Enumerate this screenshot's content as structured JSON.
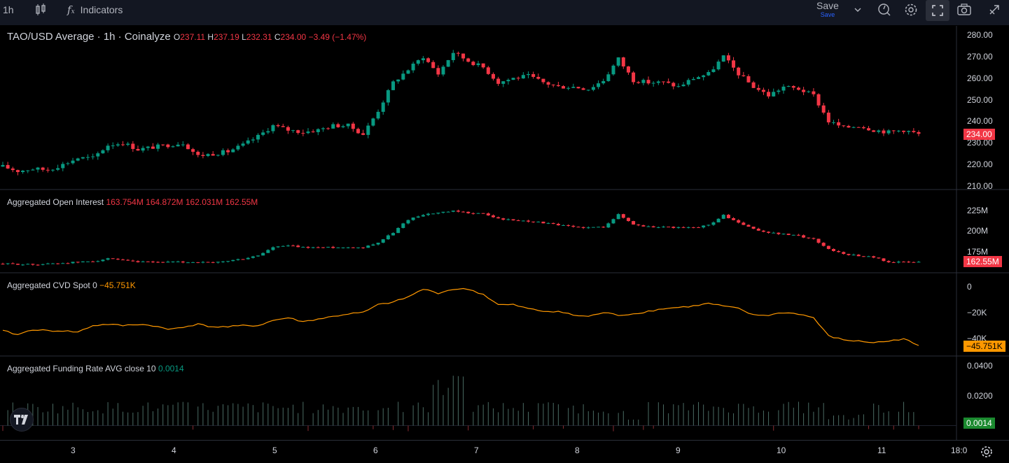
{
  "toolbar": {
    "interval": "1h",
    "indicators_label": "Indicators",
    "save_label": "Save",
    "save_sub": "Save",
    "icons": [
      "candles-icon",
      "fx-icon",
      "chevron-down-icon",
      "replay-icon",
      "gear-icon",
      "fullscreen-icon",
      "camera-icon",
      "publish-icon"
    ]
  },
  "colors": {
    "up": "#089981",
    "down": "#f23645",
    "cvd": "#ff9800",
    "grid": "#1e222d",
    "bg": "#000000",
    "funding_up": "#4a6b63",
    "funding_down": "#8a2d33"
  },
  "chart_data": [
    {
      "type": "candlestick",
      "title_parts": {
        "symbol": "TAO/USD Average · 1h · Coinalyze",
        "o_label": "O",
        "o": "237.11",
        "h_label": "H",
        "h": "237.19",
        "l_label": "L",
        "l": "232.31",
        "c_label": "C",
        "c": "234.00",
        "change": "−3.49 (−1.47%)"
      },
      "ylim": [
        210,
        280
      ],
      "y_ticks": [
        "280.00",
        "270.00",
        "260.00",
        "250.00",
        "240.00",
        "230.00",
        "220.00",
        "210.00"
      ],
      "last_value": "234.00",
      "close_path": [
        [
          0,
          219
        ],
        [
          3,
          217
        ],
        [
          6,
          218
        ],
        [
          9,
          217.5
        ],
        [
          12,
          220
        ],
        [
          15,
          223
        ],
        [
          18,
          223
        ],
        [
          21,
          229
        ],
        [
          24,
          230
        ],
        [
          27,
          227
        ],
        [
          30,
          228
        ],
        [
          33,
          229
        ],
        [
          36,
          230
        ],
        [
          39,
          224
        ],
        [
          42,
          225
        ],
        [
          45,
          226
        ],
        [
          48,
          229
        ],
        [
          51,
          233
        ],
        [
          54,
          238
        ],
        [
          57,
          236
        ],
        [
          60,
          235
        ],
        [
          63,
          236
        ],
        [
          66,
          238
        ],
        [
          69,
          238
        ],
        [
          72,
          234
        ],
        [
          75,
          245
        ],
        [
          78,
          258
        ],
        [
          81,
          264
        ],
        [
          84,
          270
        ],
        [
          87,
          262
        ],
        [
          90,
          272
        ],
        [
          93,
          268
        ],
        [
          96,
          265
        ],
        [
          99,
          258
        ],
        [
          102,
          260
        ],
        [
          105,
          261
        ],
        [
          108,
          258
        ],
        [
          111,
          256
        ],
        [
          114,
          256
        ],
        [
          117,
          255
        ],
        [
          120,
          259
        ],
        [
          123,
          269
        ],
        [
          126,
          259
        ],
        [
          129,
          258
        ],
        [
          132,
          258
        ],
        [
          135,
          256
        ],
        [
          138,
          260
        ],
        [
          141,
          262
        ],
        [
          144,
          270
        ],
        [
          147,
          262
        ],
        [
          150,
          256
        ],
        [
          153,
          252
        ],
        [
          156,
          256
        ],
        [
          159,
          255
        ],
        [
          162,
          252
        ],
        [
          165,
          240
        ],
        [
          168,
          237
        ],
        [
          171,
          238
        ],
        [
          174,
          236
        ],
        [
          177,
          235
        ],
        [
          180,
          236
        ],
        [
          183,
          234
        ]
      ]
    },
    {
      "type": "candlestick",
      "title_parts": {
        "name": "Aggregated Open Interest",
        "o": "163.754M",
        "h": "164.872M",
        "l": "162.031M",
        "c": "162.55M"
      },
      "ylim": [
        155,
        230
      ],
      "y_ticks": [
        "225M",
        "200M",
        "175M"
      ],
      "last_value": "162.55M",
      "close_path": [
        [
          0,
          160
        ],
        [
          6,
          159
        ],
        [
          12,
          161
        ],
        [
          18,
          163
        ],
        [
          21,
          166
        ],
        [
          24,
          164
        ],
        [
          27,
          162
        ],
        [
          33,
          162
        ],
        [
          39,
          162
        ],
        [
          42,
          161
        ],
        [
          48,
          166
        ],
        [
          51,
          170
        ],
        [
          54,
          180
        ],
        [
          57,
          182
        ],
        [
          60,
          180
        ],
        [
          66,
          180
        ],
        [
          72,
          180
        ],
        [
          75,
          186
        ],
        [
          78,
          198
        ],
        [
          81,
          214
        ],
        [
          84,
          220
        ],
        [
          87,
          222
        ],
        [
          90,
          224
        ],
        [
          93,
          222
        ],
        [
          96,
          221
        ],
        [
          99,
          215
        ],
        [
          102,
          213
        ],
        [
          105,
          212
        ],
        [
          108,
          210
        ],
        [
          111,
          207
        ],
        [
          114,
          205
        ],
        [
          117,
          204
        ],
        [
          120,
          205
        ],
        [
          123,
          220
        ],
        [
          126,
          208
        ],
        [
          129,
          205
        ],
        [
          132,
          205
        ],
        [
          135,
          204
        ],
        [
          138,
          204
        ],
        [
          141,
          207
        ],
        [
          144,
          219
        ],
        [
          147,
          210
        ],
        [
          150,
          202
        ],
        [
          153,
          198
        ],
        [
          156,
          196
        ],
        [
          159,
          194
        ],
        [
          162,
          190
        ],
        [
          165,
          178
        ],
        [
          168,
          172
        ],
        [
          171,
          170
        ],
        [
          174,
          168
        ],
        [
          177,
          162
        ],
        [
          180,
          162
        ],
        [
          183,
          162
        ]
      ]
    },
    {
      "type": "line",
      "title_parts": {
        "name": "Aggregated CVD Spot 0",
        "value": "−45.751K"
      },
      "ylim": [
        -48,
        2
      ],
      "y_ticks": [
        "0",
        "−20K",
        "−40K"
      ],
      "last_value": "−45.751K",
      "values": [
        [
          0,
          -34
        ],
        [
          3,
          -37
        ],
        [
          6,
          -33
        ],
        [
          9,
          -34
        ],
        [
          12,
          -34
        ],
        [
          15,
          -35
        ],
        [
          18,
          -30
        ],
        [
          21,
          -29
        ],
        [
          24,
          -30
        ],
        [
          27,
          -29
        ],
        [
          30,
          -30
        ],
        [
          33,
          -33
        ],
        [
          36,
          -31
        ],
        [
          39,
          -29
        ],
        [
          42,
          -31
        ],
        [
          45,
          -31
        ],
        [
          48,
          -30
        ],
        [
          51,
          -30
        ],
        [
          54,
          -26
        ],
        [
          57,
          -24
        ],
        [
          60,
          -27
        ],
        [
          63,
          -25
        ],
        [
          66,
          -23
        ],
        [
          69,
          -21
        ],
        [
          72,
          -20
        ],
        [
          75,
          -14
        ],
        [
          78,
          -12
        ],
        [
          81,
          -8
        ],
        [
          84,
          -2
        ],
        [
          87,
          -5
        ],
        [
          90,
          -2
        ],
        [
          93,
          -2
        ],
        [
          96,
          -6
        ],
        [
          99,
          -14
        ],
        [
          102,
          -14
        ],
        [
          105,
          -17
        ],
        [
          108,
          -19
        ],
        [
          111,
          -19
        ],
        [
          114,
          -22
        ],
        [
          117,
          -23
        ],
        [
          120,
          -20
        ],
        [
          123,
          -22
        ],
        [
          126,
          -21
        ],
        [
          129,
          -19
        ],
        [
          132,
          -17
        ],
        [
          135,
          -16
        ],
        [
          138,
          -15
        ],
        [
          141,
          -13
        ],
        [
          144,
          -15
        ],
        [
          147,
          -17
        ],
        [
          150,
          -22
        ],
        [
          153,
          -22
        ],
        [
          156,
          -20
        ],
        [
          159,
          -21
        ],
        [
          162,
          -24
        ],
        [
          165,
          -38
        ],
        [
          168,
          -41
        ],
        [
          171,
          -42
        ],
        [
          174,
          -43
        ],
        [
          177,
          -42
        ],
        [
          180,
          -40
        ],
        [
          183,
          -45.751
        ]
      ]
    },
    {
      "type": "bar",
      "title_parts": {
        "name": "Aggregated Funding Rate AVG close 10",
        "value": "0.0014"
      },
      "ylim": [
        -0.004,
        0.042
      ],
      "y_ticks": [
        "0.0400",
        "0.0200"
      ],
      "last_value": "0.0014"
    }
  ],
  "x_axis": {
    "labels": [
      "3",
      "4",
      "5",
      "6",
      "7",
      "8",
      "9",
      "10",
      "11",
      "18:0"
    ]
  }
}
